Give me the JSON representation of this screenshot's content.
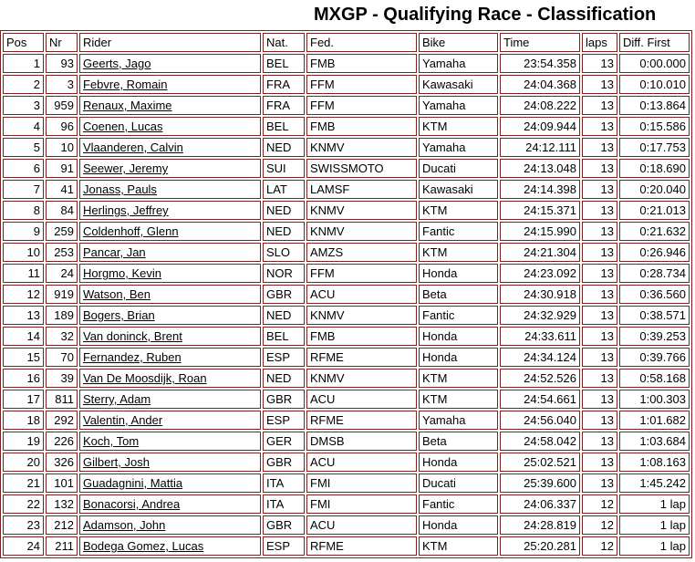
{
  "title": "MXGP - Qualifying Race - Classification",
  "colors": {
    "border": "#7d2222",
    "text": "#000000",
    "background": "#ffffff"
  },
  "table": {
    "columns": [
      {
        "key": "pos",
        "label": "Pos"
      },
      {
        "key": "nr",
        "label": "Nr"
      },
      {
        "key": "rider",
        "label": "Rider"
      },
      {
        "key": "nat",
        "label": "Nat."
      },
      {
        "key": "fed",
        "label": "Fed."
      },
      {
        "key": "bike",
        "label": "Bike"
      },
      {
        "key": "time",
        "label": "Time"
      },
      {
        "key": "laps",
        "label": "laps"
      },
      {
        "key": "diff",
        "label": "Diff. First"
      }
    ],
    "rows": [
      {
        "pos": "1",
        "nr": "93",
        "rider": "Geerts, Jago",
        "nat": "BEL",
        "fed": "FMB",
        "bike": "Yamaha",
        "time": "23:54.358",
        "laps": "13",
        "diff": "0:00.000"
      },
      {
        "pos": "2",
        "nr": "3",
        "rider": "Febvre, Romain",
        "nat": "FRA",
        "fed": "FFM",
        "bike": "Kawasaki",
        "time": "24:04.368",
        "laps": "13",
        "diff": "0:10.010"
      },
      {
        "pos": "3",
        "nr": "959",
        "rider": "Renaux, Maxime",
        "nat": "FRA",
        "fed": "FFM",
        "bike": "Yamaha",
        "time": "24:08.222",
        "laps": "13",
        "diff": "0:13.864"
      },
      {
        "pos": "4",
        "nr": "96",
        "rider": "Coenen, Lucas",
        "nat": "BEL",
        "fed": "FMB",
        "bike": "KTM",
        "time": "24:09.944",
        "laps": "13",
        "diff": "0:15.586"
      },
      {
        "pos": "5",
        "nr": "10",
        "rider": "Vlaanderen, Calvin",
        "nat": "NED",
        "fed": "KNMV",
        "bike": "Yamaha",
        "time": "24:12.111",
        "laps": "13",
        "diff": "0:17.753"
      },
      {
        "pos": "6",
        "nr": "91",
        "rider": "Seewer, Jeremy",
        "nat": "SUI",
        "fed": "SWISSMOTO",
        "bike": "Ducati",
        "time": "24:13.048",
        "laps": "13",
        "diff": "0:18.690"
      },
      {
        "pos": "7",
        "nr": "41",
        "rider": "Jonass, Pauls",
        "nat": "LAT",
        "fed": "LAMSF",
        "bike": "Kawasaki",
        "time": "24:14.398",
        "laps": "13",
        "diff": "0:20.040"
      },
      {
        "pos": "8",
        "nr": "84",
        "rider": "Herlings, Jeffrey",
        "nat": "NED",
        "fed": "KNMV",
        "bike": "KTM",
        "time": "24:15.371",
        "laps": "13",
        "diff": "0:21.013"
      },
      {
        "pos": "9",
        "nr": "259",
        "rider": "Coldenhoff, Glenn",
        "nat": "NED",
        "fed": "KNMV",
        "bike": "Fantic",
        "time": "24:15.990",
        "laps": "13",
        "diff": "0:21.632"
      },
      {
        "pos": "10",
        "nr": "253",
        "rider": "Pancar, Jan",
        "nat": "SLO",
        "fed": "AMZS",
        "bike": "KTM",
        "time": "24:21.304",
        "laps": "13",
        "diff": "0:26.946"
      },
      {
        "pos": "11",
        "nr": "24",
        "rider": "Horgmo, Kevin",
        "nat": "NOR",
        "fed": "FFM",
        "bike": "Honda",
        "time": "24:23.092",
        "laps": "13",
        "diff": "0:28.734"
      },
      {
        "pos": "12",
        "nr": "919",
        "rider": "Watson, Ben",
        "nat": "GBR",
        "fed": "ACU",
        "bike": "Beta",
        "time": "24:30.918",
        "laps": "13",
        "diff": "0:36.560"
      },
      {
        "pos": "13",
        "nr": "189",
        "rider": "Bogers, Brian",
        "nat": "NED",
        "fed": "KNMV",
        "bike": "Fantic",
        "time": "24:32.929",
        "laps": "13",
        "diff": "0:38.571"
      },
      {
        "pos": "14",
        "nr": "32",
        "rider": "Van doninck, Brent",
        "nat": "BEL",
        "fed": "FMB",
        "bike": "Honda",
        "time": "24:33.611",
        "laps": "13",
        "diff": "0:39.253"
      },
      {
        "pos": "15",
        "nr": "70",
        "rider": "Fernandez, Ruben",
        "nat": "ESP",
        "fed": "RFME",
        "bike": "Honda",
        "time": "24:34.124",
        "laps": "13",
        "diff": "0:39.766"
      },
      {
        "pos": "16",
        "nr": "39",
        "rider": "Van De Moosdijk, Roan",
        "nat": "NED",
        "fed": "KNMV",
        "bike": "KTM",
        "time": "24:52.526",
        "laps": "13",
        "diff": "0:58.168"
      },
      {
        "pos": "17",
        "nr": "811",
        "rider": "Sterry, Adam",
        "nat": "GBR",
        "fed": "ACU",
        "bike": "KTM",
        "time": "24:54.661",
        "laps": "13",
        "diff": "1:00.303"
      },
      {
        "pos": "18",
        "nr": "292",
        "rider": "Valentin, Ander",
        "nat": "ESP",
        "fed": "RFME",
        "bike": "Yamaha",
        "time": "24:56.040",
        "laps": "13",
        "diff": "1:01.682"
      },
      {
        "pos": "19",
        "nr": "226",
        "rider": "Koch, Tom",
        "nat": "GER",
        "fed": "DMSB",
        "bike": "Beta",
        "time": "24:58.042",
        "laps": "13",
        "diff": "1:03.684"
      },
      {
        "pos": "20",
        "nr": "326",
        "rider": "Gilbert, Josh",
        "nat": "GBR",
        "fed": "ACU",
        "bike": "Honda",
        "time": "25:02.521",
        "laps": "13",
        "diff": "1:08.163"
      },
      {
        "pos": "21",
        "nr": "101",
        "rider": "Guadagnini, Mattia",
        "nat": "ITA",
        "fed": "FMI",
        "bike": "Ducati",
        "time": "25:39.600",
        "laps": "13",
        "diff": "1:45.242"
      },
      {
        "pos": "22",
        "nr": "132",
        "rider": "Bonacorsi, Andrea",
        "nat": "ITA",
        "fed": "FMI",
        "bike": "Fantic",
        "time": "24:06.337",
        "laps": "12",
        "diff": "1 lap"
      },
      {
        "pos": "23",
        "nr": "212",
        "rider": "Adamson, John",
        "nat": "GBR",
        "fed": "ACU",
        "bike": "Honda",
        "time": "24:28.819",
        "laps": "12",
        "diff": "1 lap"
      },
      {
        "pos": "24",
        "nr": "211",
        "rider": "Bodega Gomez, Lucas",
        "nat": "ESP",
        "fed": "RFME",
        "bike": "KTM",
        "time": "25:20.281",
        "laps": "12",
        "diff": "1 lap"
      }
    ]
  }
}
